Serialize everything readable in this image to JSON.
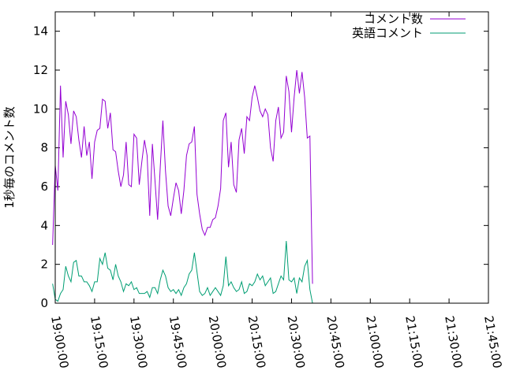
{
  "chart_data": {
    "type": "line",
    "title": "",
    "xlabel": "",
    "ylabel": "1秒毎のコメント数",
    "xlim": [
      "19:00:00",
      "21:45:00"
    ],
    "ylim": [
      0,
      15
    ],
    "x_ticks": [
      "19:00:00",
      "19:15:00",
      "19:30:00",
      "19:45:00",
      "20:00:00",
      "20:15:00",
      "20:30:00",
      "20:45:00",
      "21:00:00",
      "21:15:00",
      "21:30:00",
      "21:45:00"
    ],
    "y_ticks": [
      0,
      2,
      4,
      6,
      8,
      10,
      12,
      14
    ],
    "grid": false,
    "legend_position": "top-right",
    "sample_interval": "1 minute",
    "x_start": "18:59:00",
    "series": [
      {
        "name": "コメント数",
        "color": "#9400d3",
        "values": [
          3.0,
          7.1,
          5.8,
          11.2,
          7.5,
          10.4,
          9.7,
          8.2,
          9.9,
          9.6,
          8.4,
          7.5,
          9.1,
          7.6,
          8.3,
          6.4,
          8.3,
          8.9,
          9.0,
          10.5,
          10.4,
          9.0,
          9.8,
          7.9,
          7.8,
          6.8,
          6.0,
          6.6,
          8.3,
          6.1,
          6.0,
          8.7,
          8.5,
          6.1,
          7.3,
          8.4,
          7.6,
          4.5,
          8.2,
          6.3,
          4.3,
          7.0,
          9.4,
          6.8,
          5.0,
          4.5,
          5.4,
          6.2,
          5.8,
          4.6,
          5.8,
          7.6,
          8.2,
          8.3,
          9.1,
          5.6,
          4.6,
          3.8,
          3.5,
          3.9,
          3.9,
          4.3,
          4.4,
          5.0,
          5.9,
          9.4,
          9.8,
          7.0,
          8.3,
          6.1,
          5.7,
          8.4,
          9.0,
          7.7,
          9.6,
          9.4,
          10.6,
          11.2,
          10.6,
          9.9,
          9.6,
          10.0,
          9.7,
          8.0,
          7.3,
          9.4,
          10.1,
          8.5,
          8.8,
          11.7,
          10.9,
          8.8,
          10.6,
          12.0,
          10.8,
          11.9,
          10.6,
          8.5,
          8.6,
          1.0
        ]
      },
      {
        "name": "英語コメント",
        "color": "#009e73",
        "values": [
          1.0,
          0.2,
          0.1,
          0.5,
          0.7,
          1.9,
          1.4,
          1.1,
          2.1,
          2.2,
          1.4,
          1.4,
          1.1,
          1.1,
          0.9,
          0.6,
          1.1,
          1.1,
          2.3,
          2.0,
          2.6,
          1.8,
          1.7,
          1.2,
          2.0,
          1.4,
          1.1,
          0.6,
          1.0,
          0.9,
          1.1,
          0.7,
          0.8,
          0.5,
          0.5,
          0.5,
          0.6,
          0.3,
          0.8,
          0.8,
          0.5,
          1.2,
          1.7,
          1.4,
          0.8,
          0.6,
          0.7,
          0.5,
          0.7,
          0.4,
          0.8,
          1.0,
          1.5,
          1.7,
          2.6,
          1.6,
          0.6,
          0.4,
          0.5,
          0.8,
          0.4,
          0.6,
          0.8,
          0.6,
          0.4,
          0.9,
          2.4,
          0.9,
          1.1,
          0.8,
          0.6,
          0.7,
          1.1,
          0.5,
          0.6,
          1.0,
          0.9,
          1.1,
          1.5,
          1.2,
          1.4,
          0.9,
          1.1,
          1.3,
          0.5,
          0.6,
          1.0,
          1.4,
          1.2,
          3.2,
          1.2,
          1.1,
          1.3,
          0.5,
          1.3,
          1.1,
          1.9,
          2.2,
          0.7,
          0.0
        ]
      }
    ]
  }
}
